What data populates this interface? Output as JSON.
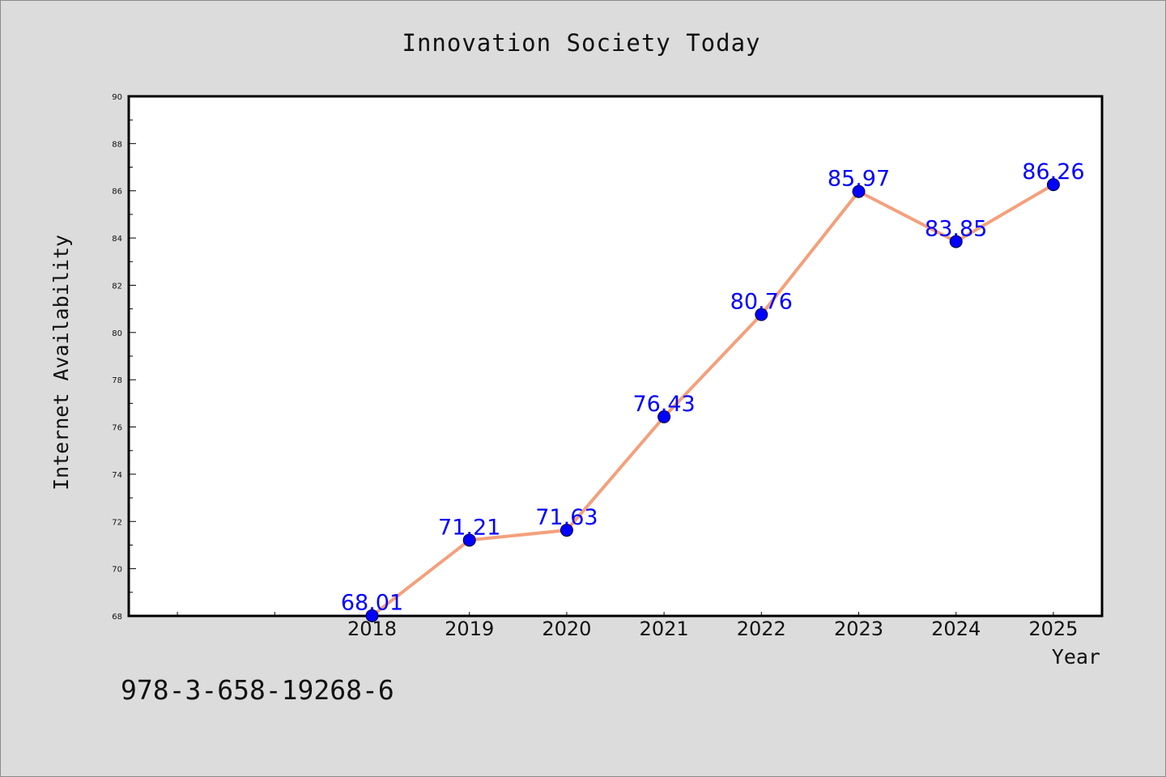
{
  "chart_data": {
    "type": "line",
    "title": "Innovation Society Today",
    "xlabel": "Year",
    "ylabel": "Internet Availability",
    "categories": [
      "2018",
      "2019",
      "2020",
      "2021",
      "2022",
      "2023",
      "2024",
      "2025"
    ],
    "series": [
      {
        "values": [
          68.01,
          71.21,
          71.63,
          76.43,
          80.76,
          85.97,
          83.85,
          86.26
        ],
        "data_labels": [
          "68.01",
          "71.21",
          "71.63",
          "76.43",
          "80.76",
          "85.97",
          "83.85",
          "86.26"
        ],
        "line_color": "#f4a07c",
        "marker_color": "#0000ff"
      }
    ],
    "xlim": [
      2015.5,
      2025.5
    ],
    "ylim": [
      68,
      90
    ],
    "y_ticks": [
      68,
      70,
      72,
      74,
      76,
      78,
      80,
      82,
      84,
      86,
      88,
      90
    ],
    "y_tick_labels": [
      "68",
      "70",
      "72",
      "74",
      "76",
      "78",
      "80",
      "82",
      "84",
      "86",
      "88",
      "90"
    ],
    "grid": false,
    "legend": "none"
  },
  "footer": {
    "isbn": "978-3-658-19268-6"
  },
  "colors": {
    "background": "#dcdcdc",
    "plot_background": "#ffffff",
    "axis": "#000000"
  }
}
